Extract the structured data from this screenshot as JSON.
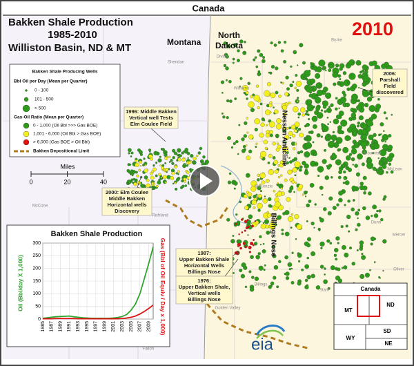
{
  "header": {
    "lines": [
      "Bakken Shale Production",
      "1985-2010",
      "Williston Basin, ND & MT"
    ],
    "year": "2010"
  },
  "regions": {
    "canada": "Canada",
    "montana": "Montana",
    "north_dakota": [
      "North",
      "Dakota"
    ]
  },
  "features": {
    "nesson": "Nesson Anticline",
    "billings_nose": "Billings Nose"
  },
  "places": [
    "Divide",
    "Burke",
    "Williams",
    "Mountrail",
    "McLean",
    "McKenzie",
    "Dunn",
    "Mercer",
    "Oliver",
    "Stark",
    "Billings",
    "Golden Valley",
    "Sheridan",
    "Roosevelt",
    "Richland",
    "Dawson",
    "McCone",
    "Wibaux",
    "Fallon"
  ],
  "legend": {
    "title": "Bakken Shale Producing Wells",
    "oil_heading": "Bbl Oil per Day (Mean per Quarter)",
    "oil_items": [
      "0 - 100",
      "101 - 500",
      "> 500"
    ],
    "gor_heading": "Gas-Oil Ratio (Mean per Quarter)",
    "gor_items": [
      {
        "label": "0 - 1,000 (Oil Bbl >>> Gas BOE)",
        "color": "#2e9a1a"
      },
      {
        "label": "1,001 - 6,000 (Oil Bbl > Gas BOE)",
        "color": "#f2ef1a"
      },
      {
        "label": "> 6,000 (Gas BOE > Oil Bbl)",
        "color": "#e01010"
      }
    ],
    "limit": "Bakken Depositional Limit"
  },
  "scale_bar": {
    "title": "Miles",
    "ticks": [
      0,
      20,
      40
    ]
  },
  "annotations": [
    [
      "1996: Middle Bakken",
      "Vertical well Tests",
      "Elm Coulee Field"
    ],
    [
      "2006:",
      "Parshall",
      "Field",
      "discovered"
    ],
    [
      "2000: Elm Coulee",
      "Middle Bakken",
      "Horizontal wells",
      "Discovery"
    ],
    [
      "1987:",
      "Upper Bakken Shale",
      "Horizontal Wells",
      "Billings Nose"
    ],
    [
      "1976:",
      "Upper Bakken Shale,",
      "Vertical wells",
      "Billings Nose"
    ]
  ],
  "locator": {
    "title": "Canada",
    "states": [
      "MT",
      "ND",
      "WY",
      "SD",
      "NE"
    ]
  },
  "logo": "eia",
  "chart_data": {
    "type": "line",
    "title": "Bakken Shale Production",
    "y_label": "Oil (Bbl/day X 1,000)",
    "y2_label": "Gas (Bbl of Oil Equiv / Day x 1,000)",
    "x": [
      1985,
      1986,
      1987,
      1988,
      1989,
      1990,
      1991,
      1992,
      1993,
      1994,
      1995,
      1996,
      1997,
      1998,
      1999,
      2000,
      2001,
      2002,
      2003,
      2004,
      2005,
      2006,
      2007,
      2008,
      2009,
      2010
    ],
    "series": [
      {
        "name": "Oil",
        "color": "#2ea52e",
        "values": [
          3,
          5,
          7,
          9,
          10,
          11,
          12,
          9,
          7,
          5,
          4,
          3,
          3,
          3,
          3,
          3,
          4,
          6,
          10,
          18,
          35,
          60,
          100,
          160,
          220,
          285
        ]
      },
      {
        "name": "Gas",
        "color": "#e01010",
        "axis": "y2",
        "values": [
          1,
          1,
          1,
          2,
          2,
          2,
          2,
          2,
          1,
          1,
          1,
          1,
          1,
          1,
          1,
          1,
          1,
          1,
          2,
          4,
          7,
          12,
          20,
          30,
          42,
          55
        ]
      }
    ],
    "xlim": [
      1985,
      2010
    ],
    "xticks": [
      1985,
      1987,
      1989,
      1991,
      1993,
      1995,
      1997,
      1999,
      2001,
      2003,
      2005,
      2007,
      2009
    ],
    "ylim": [
      0,
      300
    ],
    "yticks": [
      0,
      50,
      100,
      150,
      200,
      250,
      300
    ],
    "y2lim": [
      0,
      300
    ]
  }
}
